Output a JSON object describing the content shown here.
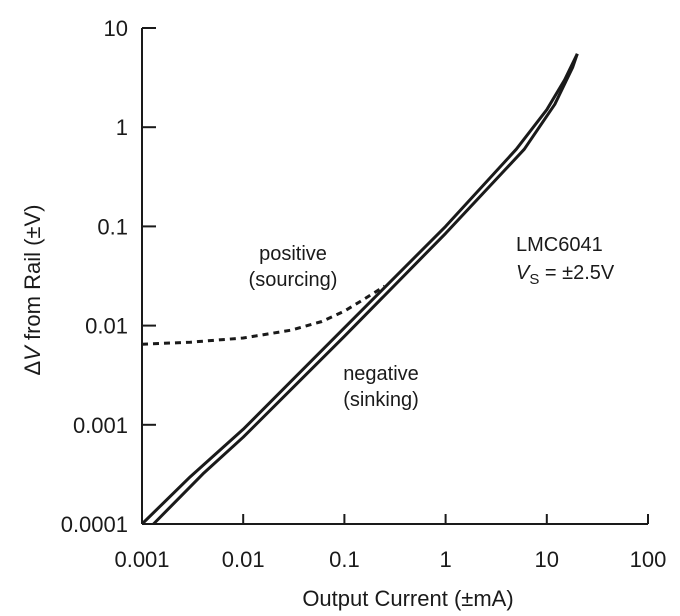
{
  "chart_data": {
    "type": "line",
    "xscale": "log",
    "yscale": "log",
    "xlim": [
      0.001,
      100
    ],
    "ylim": [
      0.0001,
      10
    ],
    "xlabel": "Output Current  (±mA)",
    "ylabel": "ΔV from Rail  (±V)",
    "ylabel_prefix": "Δ",
    "ylabel_var": "V",
    "ylabel_rest": " from Rail  (±V)",
    "xticks": [
      0.001,
      0.01,
      0.1,
      1,
      10,
      100
    ],
    "xtick_labels": [
      "0.001",
      "0.01",
      "0.1",
      "1",
      "10",
      "100"
    ],
    "yticks": [
      0.0001,
      0.001,
      0.01,
      0.1,
      1,
      10
    ],
    "ytick_labels": [
      "0.0001",
      "0.001",
      "0.01",
      "0.1",
      "1",
      "10"
    ],
    "grid": false,
    "series": [
      {
        "style": "solid",
        "color": "#1a1a1a",
        "x": [
          0.001,
          0.003,
          0.01,
          0.1,
          1,
          5,
          10,
          15,
          20
        ],
        "y": [
          0.0001,
          0.0003,
          0.0009,
          0.0095,
          0.1,
          0.6,
          1.5,
          3,
          5.5
        ]
      },
      {
        "style": "solid",
        "color": "#1a1a1a",
        "x": [
          0.0013,
          0.004,
          0.01,
          0.1,
          1,
          6,
          12,
          18,
          20
        ],
        "y": [
          0.0001,
          0.00032,
          0.00075,
          0.0078,
          0.085,
          0.6,
          1.7,
          4,
          5.5
        ]
      },
      {
        "style": "dashed",
        "color": "#1a1a1a",
        "x": [
          0.001,
          0.003,
          0.01,
          0.03,
          0.06,
          0.1,
          0.15,
          0.25
        ],
        "y": [
          0.0065,
          0.0068,
          0.0075,
          0.009,
          0.011,
          0.014,
          0.018,
          0.025
        ]
      }
    ],
    "annotations": {
      "positive_line1": "positive",
      "positive_line2": "(sourcing)",
      "negative_line1": "negative",
      "negative_line2": "(sinking)",
      "device": "LMC6041",
      "vs_var": "V",
      "vs_sub": "S",
      "vs_rest": " = ±2.5V"
    }
  }
}
